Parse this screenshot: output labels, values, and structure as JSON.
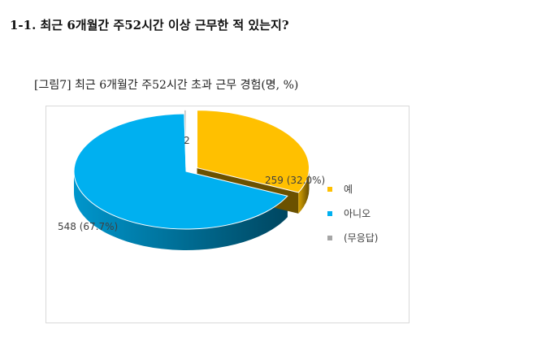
{
  "section_heading": "1-1.  최근 6개월간 주52시간 이상 근무한 적 있는지?",
  "figure_caption": "[그림7] 최근 6개월간 주52시간 초과 근무 경험(명, %)",
  "chart_data": {
    "type": "pie",
    "style": "3d-exploded",
    "categories": [
      "예",
      "아니오",
      "(무응답)"
    ],
    "values": [
      259,
      548,
      2
    ],
    "percents": [
      32.0,
      67.7,
      null
    ],
    "data_labels": [
      "259 (32.0%)",
      "548 (67.7%)",
      "2"
    ],
    "legend_position": "right",
    "colors": [
      "#ffc000",
      "#00b0f0",
      "#a6a6a6"
    ]
  }
}
